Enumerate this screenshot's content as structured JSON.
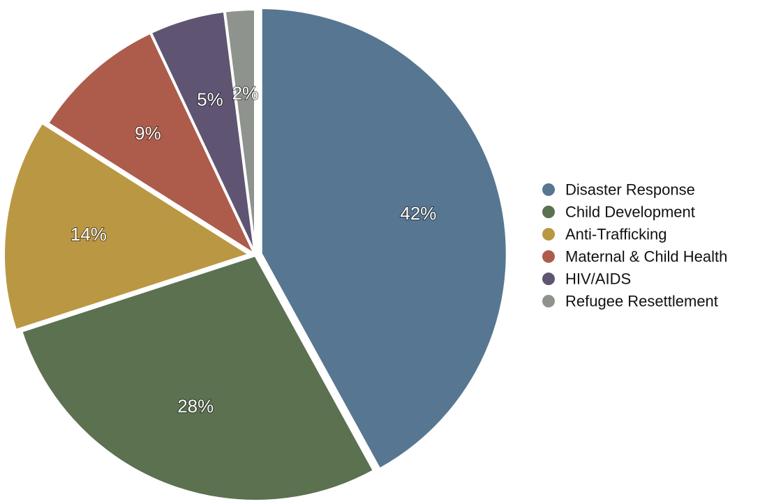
{
  "chart_data": {
    "type": "pie",
    "title": "",
    "categories": [
      "Disaster Response",
      "Child Development",
      "Anti-Trafficking",
      "Maternal & Child Health",
      "HIV/AIDS",
      "Refugee Resettlement"
    ],
    "values": [
      42,
      28,
      14,
      9,
      5,
      2
    ],
    "value_labels": [
      "42%",
      "28%",
      "14%",
      "9%",
      "5%",
      "2%"
    ],
    "colors": [
      "#577691",
      "#5b7150",
      "#ba9742",
      "#ad5c4b",
      "#5f5572",
      "#8f938d"
    ],
    "exploded": [
      "Disaster Response",
      "Anti-Trafficking"
    ],
    "legend": "right",
    "legend_entries": [
      "Disaster Response",
      "Child Development",
      "Anti-Trafficking",
      "Maternal & Child Health",
      "HIV/AIDS",
      "Refugee Resettlement"
    ]
  }
}
